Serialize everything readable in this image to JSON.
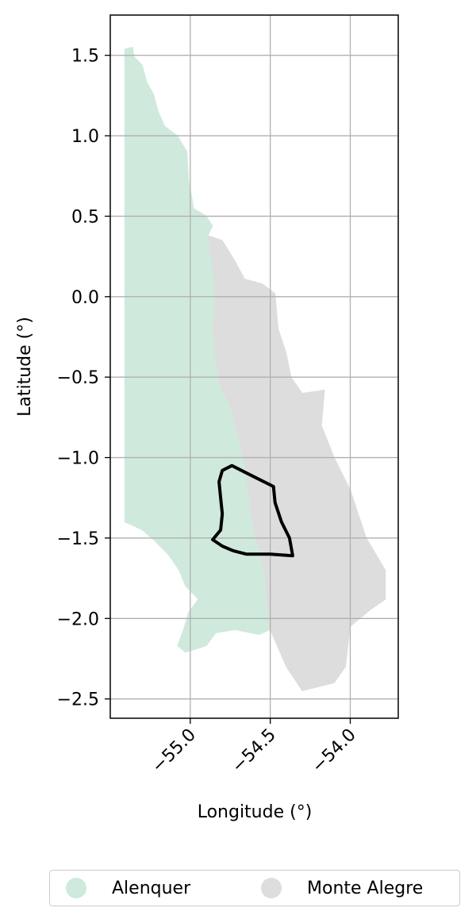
{
  "chart_data": {
    "type": "map",
    "xlabel": "Longitude (°)",
    "ylabel": "Latitude (°)",
    "xlim": [
      -55.5,
      -53.7
    ],
    "ylim": [
      -2.62,
      1.75
    ],
    "xticks": [
      -55.0,
      -54.5,
      -54.0
    ],
    "xtick_labels": [
      "−55.0",
      "−54.5",
      "−54.0"
    ],
    "yticks": [
      1.5,
      1.0,
      0.5,
      0.0,
      -0.5,
      -1.0,
      -1.5,
      -2.0,
      -2.5
    ],
    "ytick_labels": [
      "1.5",
      "1.0",
      "0.5",
      "0.0",
      "−0.5",
      "−1.0",
      "−1.5",
      "−2.0",
      "−2.5"
    ],
    "grid": true,
    "legend_position": "bottom-center",
    "regions": [
      {
        "name": "Alenquer",
        "color": "#cfeadd",
        "polygon": [
          [
            -55.41,
            1.54
          ],
          [
            -55.36,
            1.55
          ],
          [
            -55.35,
            1.49
          ],
          [
            -55.3,
            1.44
          ],
          [
            -55.27,
            1.33
          ],
          [
            -55.23,
            1.26
          ],
          [
            -55.2,
            1.15
          ],
          [
            -55.16,
            1.06
          ],
          [
            -55.08,
            1.0
          ],
          [
            -55.02,
            0.9
          ],
          [
            -55.01,
            0.72
          ],
          [
            -54.99,
            0.62
          ],
          [
            -54.98,
            0.55
          ],
          [
            -54.9,
            0.5
          ],
          [
            -54.86,
            0.44
          ],
          [
            -54.89,
            0.38
          ],
          [
            -54.86,
            0.18
          ],
          [
            -54.84,
            0.0
          ],
          [
            -54.86,
            -0.2
          ],
          [
            -54.84,
            -0.4
          ],
          [
            -54.81,
            -0.56
          ],
          [
            -54.74,
            -0.7
          ],
          [
            -54.7,
            -0.88
          ],
          [
            -54.66,
            -1.05
          ],
          [
            -54.64,
            -1.2
          ],
          [
            -54.62,
            -1.35
          ],
          [
            -54.59,
            -1.5
          ],
          [
            -54.56,
            -1.6
          ],
          [
            -54.53,
            -1.75
          ],
          [
            -54.52,
            -1.9
          ],
          [
            -54.5,
            -2.07
          ],
          [
            -54.57,
            -2.1
          ],
          [
            -54.72,
            -2.07
          ],
          [
            -54.84,
            -2.09
          ],
          [
            -54.9,
            -2.17
          ],
          [
            -55.03,
            -2.21
          ],
          [
            -55.08,
            -2.17
          ],
          [
            -55.04,
            -2.06
          ],
          [
            -55.01,
            -1.96
          ],
          [
            -54.95,
            -1.88
          ],
          [
            -55.03,
            -1.8
          ],
          [
            -55.07,
            -1.7
          ],
          [
            -55.14,
            -1.6
          ],
          [
            -55.22,
            -1.52
          ],
          [
            -55.3,
            -1.45
          ],
          [
            -55.41,
            -1.4
          ]
        ]
      },
      {
        "name": "Monte Alegre",
        "color": "#dddddd",
        "polygon": [
          [
            -54.89,
            0.38
          ],
          [
            -54.8,
            0.35
          ],
          [
            -54.72,
            0.22
          ],
          [
            -54.66,
            0.11
          ],
          [
            -54.55,
            0.08
          ],
          [
            -54.47,
            0.02
          ],
          [
            -54.45,
            -0.2
          ],
          [
            -54.4,
            -0.35
          ],
          [
            -54.37,
            -0.5
          ],
          [
            -54.3,
            -0.6
          ],
          [
            -54.16,
            -0.58
          ],
          [
            -54.18,
            -0.8
          ],
          [
            -54.1,
            -1.0
          ],
          [
            -54.0,
            -1.2
          ],
          [
            -53.9,
            -1.5
          ],
          [
            -53.78,
            -1.7
          ],
          [
            -53.78,
            -1.88
          ],
          [
            -53.88,
            -1.95
          ],
          [
            -54.0,
            -2.05
          ],
          [
            -54.03,
            -2.3
          ],
          [
            -54.1,
            -2.4
          ],
          [
            -54.3,
            -2.45
          ],
          [
            -54.4,
            -2.3
          ],
          [
            -54.5,
            -2.07
          ],
          [
            -54.52,
            -1.9
          ],
          [
            -54.53,
            -1.75
          ],
          [
            -54.56,
            -1.6
          ],
          [
            -54.59,
            -1.5
          ],
          [
            -54.62,
            -1.35
          ],
          [
            -54.64,
            -1.2
          ],
          [
            -54.66,
            -1.05
          ],
          [
            -54.7,
            -0.88
          ],
          [
            -54.74,
            -0.7
          ],
          [
            -54.81,
            -0.56
          ],
          [
            -54.84,
            -0.4
          ],
          [
            -54.86,
            -0.2
          ],
          [
            -54.84,
            0.0
          ],
          [
            -54.86,
            0.18
          ]
        ]
      }
    ],
    "outline": {
      "color": "#000000",
      "polygon": [
        [
          -54.74,
          -1.05
        ],
        [
          -54.8,
          -1.08
        ],
        [
          -54.82,
          -1.15
        ],
        [
          -54.81,
          -1.25
        ],
        [
          -54.8,
          -1.35
        ],
        [
          -54.81,
          -1.45
        ],
        [
          -54.86,
          -1.51
        ],
        [
          -54.8,
          -1.55
        ],
        [
          -54.73,
          -1.58
        ],
        [
          -54.65,
          -1.6
        ],
        [
          -54.6,
          -1.6
        ],
        [
          -54.5,
          -1.6
        ],
        [
          -54.36,
          -1.61
        ],
        [
          -54.38,
          -1.5
        ],
        [
          -54.43,
          -1.4
        ],
        [
          -54.47,
          -1.28
        ],
        [
          -54.48,
          -1.18
        ],
        [
          -54.6,
          -1.12
        ]
      ]
    },
    "legend": [
      {
        "label": "Alenquer",
        "color": "#cfeadd"
      },
      {
        "label": "Monte Alegre",
        "color": "#dddddd"
      }
    ]
  }
}
